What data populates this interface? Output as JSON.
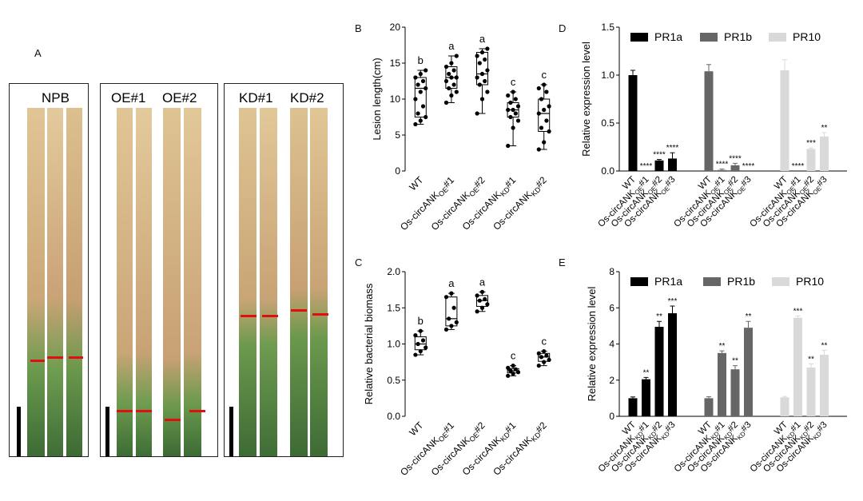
{
  "panels": {
    "A": "A",
    "B": "B",
    "C": "C",
    "D": "D",
    "E": "E"
  },
  "photo": {
    "groups": [
      {
        "labels": [
          "NPB"
        ]
      },
      {
        "labels": [
          "OE#1",
          "OE#2"
        ]
      },
      {
        "labels": [
          "KD#1",
          "KD#2"
        ]
      }
    ]
  },
  "chart_data": [
    {
      "id": "B",
      "type": "box",
      "ylabel": "Lesion length(cm)",
      "ylim": [
        0,
        20
      ],
      "yticks": [
        0,
        5,
        10,
        15,
        20
      ],
      "categories": [
        {
          "base": "WT",
          "sub": "",
          "suffix": ""
        },
        {
          "base": "Os-circANK",
          "sub": "OE",
          "suffix": "#1"
        },
        {
          "base": "Os-circANK",
          "sub": "OE",
          "suffix": "#2"
        },
        {
          "base": "Os-circANK",
          "sub": "KD",
          "suffix": "#1"
        },
        {
          "base": "Os-circANK",
          "sub": "KD",
          "suffix": "#2"
        }
      ],
      "boxes": [
        {
          "min": 6.5,
          "q1": 7.5,
          "median": 11.5,
          "q3": 13,
          "max": 14
        },
        {
          "min": 9.5,
          "q1": 11.5,
          "median": 13,
          "q3": 14.5,
          "max": 16
        },
        {
          "min": 8,
          "q1": 12,
          "median": 13.5,
          "q3": 16.5,
          "max": 17
        },
        {
          "min": 3.5,
          "q1": 7.5,
          "median": 8.5,
          "q3": 9.5,
          "max": 11
        },
        {
          "min": 3,
          "q1": 5.5,
          "median": 8,
          "q3": 10,
          "max": 12
        }
      ],
      "points": [
        [
          6.5,
          7,
          7.5,
          8,
          9,
          10,
          11,
          11.5,
          12,
          12.5,
          13,
          13.5,
          14
        ],
        [
          9.5,
          10.5,
          11,
          11.5,
          12,
          12.5,
          13,
          13,
          13.5,
          14,
          14.5,
          15,
          16
        ],
        [
          8,
          10,
          11,
          12,
          12.5,
          13,
          13.5,
          14,
          15,
          15.5,
          16,
          16.5,
          17
        ],
        [
          3.5,
          6,
          7,
          7.5,
          8,
          8.5,
          8.5,
          9,
          9.5,
          10,
          10.5,
          11
        ],
        [
          3,
          4,
          5.5,
          6,
          7,
          8,
          8.5,
          9,
          10,
          11,
          11.5,
          12
        ]
      ],
      "letters": [
        "b",
        "a",
        "a",
        "c",
        "c"
      ]
    },
    {
      "id": "C",
      "type": "box",
      "ylabel": "Relative bacterial biomass",
      "ylim": [
        0,
        2.0
      ],
      "yticks": [
        0.0,
        0.5,
        1.0,
        1.5,
        2.0
      ],
      "categories": [
        {
          "base": "WT",
          "sub": "",
          "suffix": ""
        },
        {
          "base": "Os-circANK",
          "sub": "OE",
          "suffix": "#1"
        },
        {
          "base": "Os-circANK",
          "sub": "OE",
          "suffix": "#2"
        },
        {
          "base": "Os-circANK",
          "sub": "KD",
          "suffix": "#1"
        },
        {
          "base": "Os-circANK",
          "sub": "KD",
          "suffix": "#2"
        }
      ],
      "boxes": [
        {
          "min": 0.85,
          "q1": 0.92,
          "median": 1.0,
          "q3": 1.1,
          "max": 1.18
        },
        {
          "min": 1.2,
          "q1": 1.25,
          "median": 1.35,
          "q3": 1.65,
          "max": 1.7
        },
        {
          "min": 1.45,
          "q1": 1.52,
          "median": 1.6,
          "q3": 1.67,
          "max": 1.72
        },
        {
          "min": 0.56,
          "q1": 0.6,
          "median": 0.63,
          "q3": 0.66,
          "max": 0.7
        },
        {
          "min": 0.7,
          "q1": 0.76,
          "median": 0.82,
          "q3": 0.87,
          "max": 0.9
        }
      ],
      "points": [
        [
          0.85,
          0.9,
          0.95,
          1.0,
          1.05,
          1.12,
          1.18
        ],
        [
          1.2,
          1.25,
          1.3,
          1.35,
          1.5,
          1.65,
          1.7
        ],
        [
          1.45,
          1.5,
          1.55,
          1.6,
          1.62,
          1.67,
          1.72
        ],
        [
          0.56,
          0.59,
          0.61,
          0.63,
          0.65,
          0.67,
          0.7
        ],
        [
          0.7,
          0.75,
          0.78,
          0.82,
          0.84,
          0.87,
          0.9
        ]
      ],
      "letters": [
        "b",
        "a",
        "a",
        "c",
        "c"
      ]
    },
    {
      "id": "D",
      "type": "bar",
      "ylabel": "Relative expression level",
      "ylim": [
        0,
        1.5
      ],
      "yticks": [
        0.0,
        0.5,
        1.0,
        1.5
      ],
      "categories": [
        {
          "base": "WT",
          "sub": "",
          "suffix": ""
        },
        {
          "base": "Os-circANK",
          "sub": "OE",
          "suffix": "#1"
        },
        {
          "base": "Os-circANK",
          "sub": "OE",
          "suffix": "#2"
        },
        {
          "base": "Os-circANK",
          "sub": "OE",
          "suffix": "#3"
        }
      ],
      "series": [
        {
          "name": "PR1a",
          "color": "#000000",
          "values": [
            1.0,
            0.0,
            0.11,
            0.13
          ],
          "errors": [
            0.05,
            0,
            0.01,
            0.06
          ],
          "stars": [
            "",
            "****",
            "****",
            "****"
          ]
        },
        {
          "name": "PR1b",
          "color": "#666666",
          "values": [
            1.04,
            0.01,
            0.06,
            0.0
          ],
          "errors": [
            0.07,
            0.01,
            0.02,
            0
          ],
          "stars": [
            "",
            "****",
            "****",
            "****"
          ]
        },
        {
          "name": "PR10",
          "color": "#d9d9d9",
          "values": [
            1.05,
            0.0,
            0.23,
            0.36
          ],
          "errors": [
            0.11,
            0,
            0.01,
            0.04
          ],
          "stars": [
            "",
            "****",
            "***",
            "**"
          ]
        }
      ]
    },
    {
      "id": "E",
      "type": "bar",
      "ylabel": "Relative expression level",
      "ylim": [
        0,
        8
      ],
      "yticks": [
        0,
        2,
        4,
        6,
        8
      ],
      "categories": [
        {
          "base": "WT",
          "sub": "",
          "suffix": ""
        },
        {
          "base": "Os-circANK",
          "sub": "KD",
          "suffix": "#1"
        },
        {
          "base": "Os-circANK",
          "sub": "KD",
          "suffix": "#2"
        },
        {
          "base": "Os-circANK",
          "sub": "KD",
          "suffix": "#3"
        }
      ],
      "series": [
        {
          "name": "PR1a",
          "color": "#000000",
          "values": [
            1.0,
            2.05,
            4.95,
            5.7
          ],
          "errors": [
            0.07,
            0.1,
            0.3,
            0.4
          ],
          "stars": [
            "",
            "**",
            "**",
            "***"
          ]
        },
        {
          "name": "PR1b",
          "color": "#666666",
          "values": [
            1.0,
            3.5,
            2.6,
            4.9
          ],
          "errors": [
            0.08,
            0.12,
            0.2,
            0.35
          ],
          "stars": [
            "",
            "**",
            "**",
            "**"
          ]
        },
        {
          "name": "PR10",
          "color": "#d9d9d9",
          "values": [
            1.05,
            5.45,
            2.7,
            3.4
          ],
          "errors": [
            0.05,
            0.1,
            0.2,
            0.25
          ],
          "stars": [
            "",
            "***",
            "**",
            "**"
          ]
        }
      ]
    }
  ]
}
